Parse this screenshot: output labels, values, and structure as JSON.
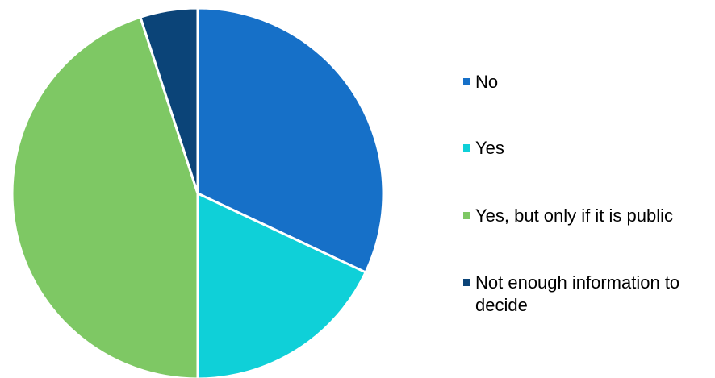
{
  "chart_data": {
    "type": "pie",
    "title": "",
    "categories": [
      "No",
      "Yes",
      "Yes, but only if it is public",
      "Not enough information to decide"
    ],
    "values": [
      32,
      18,
      45,
      5
    ],
    "colors": [
      "#1670c8",
      "#0fd0d8",
      "#7ec864",
      "#0b4478"
    ],
    "legend_position": "right",
    "start_angle": "12 o'clock, clockwise"
  }
}
